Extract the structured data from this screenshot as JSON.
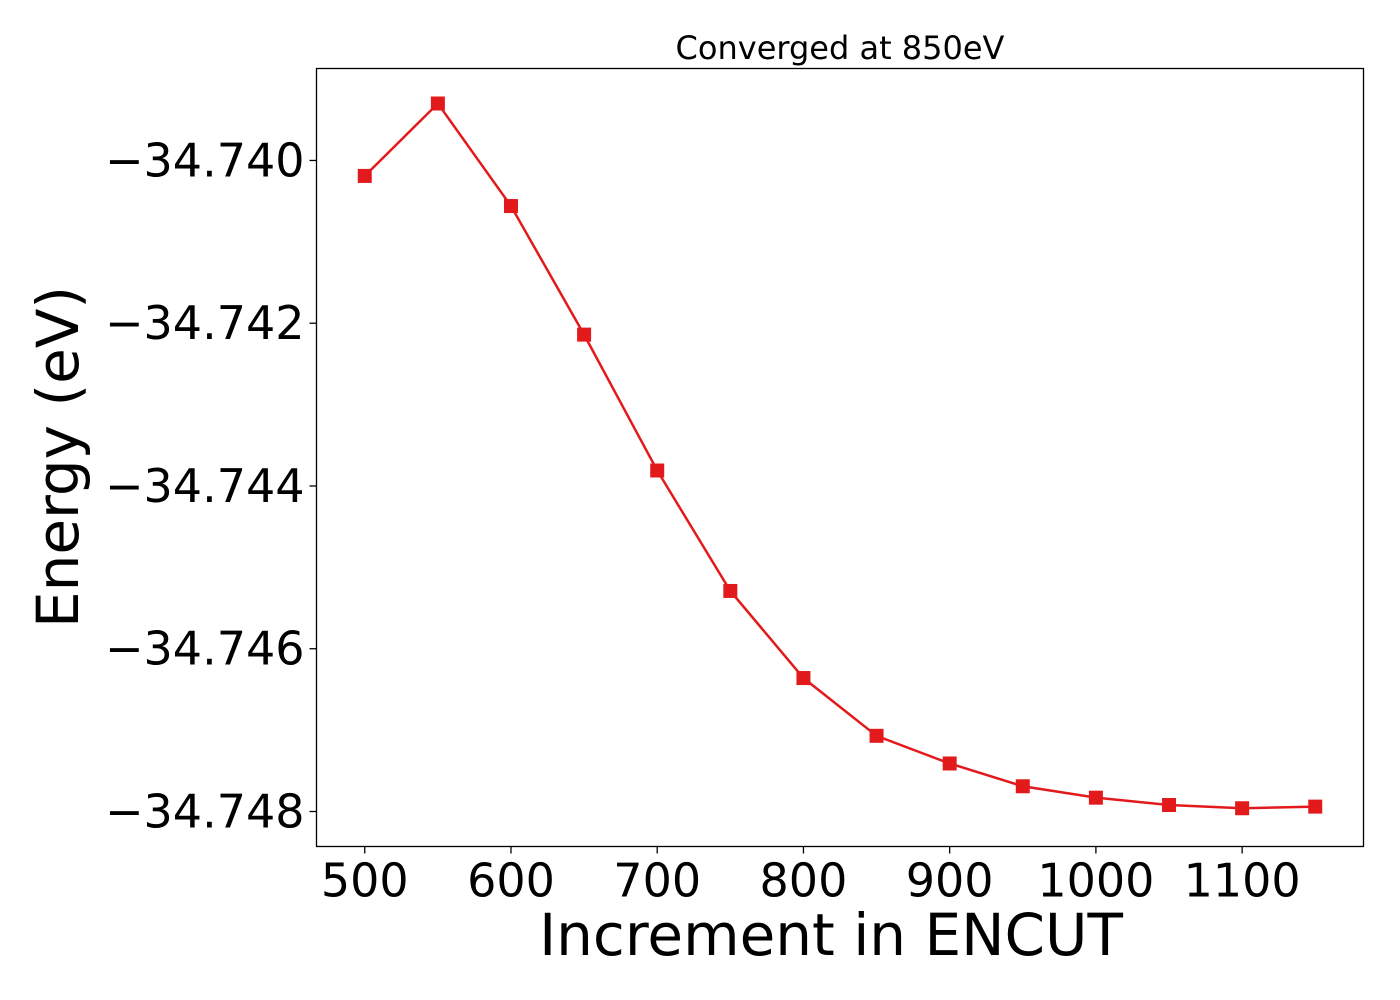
{
  "chart_data": {
    "type": "line",
    "title": "Converged at 850eV",
    "xlabel": "Increment in ENCUT",
    "ylabel": "Energy (eV)",
    "x": [
      500,
      550,
      600,
      650,
      700,
      750,
      800,
      850,
      900,
      950,
      1000,
      1050,
      1100,
      1150
    ],
    "series": [
      {
        "values": [
          -34.74019,
          -34.7393,
          -34.74056,
          -34.74214,
          -34.74381,
          -34.74529,
          -34.74636,
          -34.74707,
          -34.74741,
          -34.74769,
          -34.74783,
          -34.74792,
          -34.74796,
          -34.74794
        ],
        "color": "#e31a1c",
        "marker": "square"
      }
    ],
    "xticks": [
      500,
      600,
      700,
      800,
      900,
      1000,
      1100
    ],
    "xtick_labels": [
      "500",
      "600",
      "700",
      "800",
      "900",
      "1000",
      "1100"
    ],
    "yticks": [
      -34.74,
      -34.742,
      -34.744,
      -34.746,
      -34.748
    ],
    "ytick_labels": [
      "−34.740",
      "−34.742",
      "−34.744",
      "−34.746",
      "−34.748"
    ],
    "xlim": [
      467,
      1183
    ],
    "ylim": [
      -34.74843,
      -34.73887
    ],
    "grid": false,
    "legend": false
  }
}
